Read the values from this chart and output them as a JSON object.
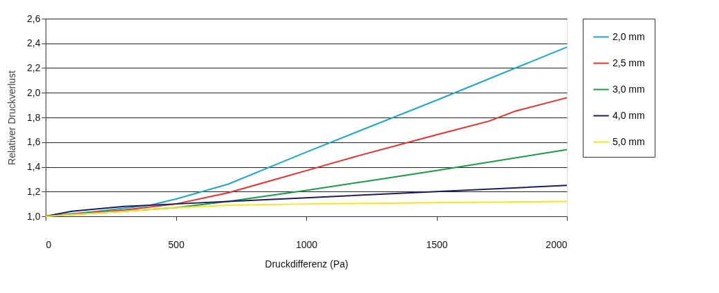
{
  "chart_data": {
    "type": "line",
    "xlabel": "Druckdifferenz (Pa)",
    "ylabel": "Relativer Druckverlust",
    "xlim": [
      0,
      2000
    ],
    "xticks": [
      0,
      500,
      1000,
      1500,
      2000
    ],
    "ylim": [
      1.0,
      2.6
    ],
    "yticks": [
      {
        "value": 1.0,
        "label": "1,0"
      },
      {
        "value": 1.2,
        "label": "1,2"
      },
      {
        "value": 1.4,
        "label": "1,4"
      },
      {
        "value": 1.6,
        "label": "1,6"
      },
      {
        "value": 1.8,
        "label": "1,8"
      },
      {
        "value": 2.0,
        "label": "2,0"
      },
      {
        "value": 2.2,
        "label": "2,2"
      },
      {
        "value": 2.4,
        "label": "2,4"
      },
      {
        "value": 2.6,
        "label": "2,6"
      }
    ],
    "grid": "y",
    "legend": "right",
    "marker": "none",
    "line_style": "solid",
    "series": [
      {
        "name": "2,0 mm",
        "color": "#1aa7c8",
        "x": [
          0,
          200,
          400,
          500,
          700,
          1000,
          1500,
          2000
        ],
        "values": [
          1.0,
          1.04,
          1.09,
          1.14,
          1.26,
          1.52,
          1.94,
          2.37
        ]
      },
      {
        "name": "2,5 mm",
        "color": "#ee2a2a",
        "x": [
          0,
          300,
          500,
          700,
          1000,
          1200,
          1500,
          1700,
          1800,
          2000
        ],
        "values": [
          1.0,
          1.05,
          1.1,
          1.19,
          1.37,
          1.49,
          1.66,
          1.77,
          1.85,
          1.96
        ]
      },
      {
        "name": "3,0 mm",
        "color": "#1a9a48",
        "x": [
          0,
          300,
          500,
          700,
          1000,
          1250,
          1500,
          2000
        ],
        "values": [
          1.0,
          1.04,
          1.07,
          1.12,
          1.21,
          1.29,
          1.37,
          1.54
        ]
      },
      {
        "name": "4,0 mm",
        "color": "#1c1c5e",
        "x": [
          0,
          100,
          300,
          500,
          700,
          1000,
          1500,
          2000
        ],
        "values": [
          1.0,
          1.04,
          1.08,
          1.1,
          1.12,
          1.15,
          1.2,
          1.25
        ]
      },
      {
        "name": "5,0 mm",
        "color": "#f5e61a",
        "x": [
          0,
          300,
          500,
          700,
          1000,
          1500,
          2000
        ],
        "values": [
          1.0,
          1.04,
          1.07,
          1.09,
          1.1,
          1.11,
          1.12
        ]
      }
    ]
  }
}
